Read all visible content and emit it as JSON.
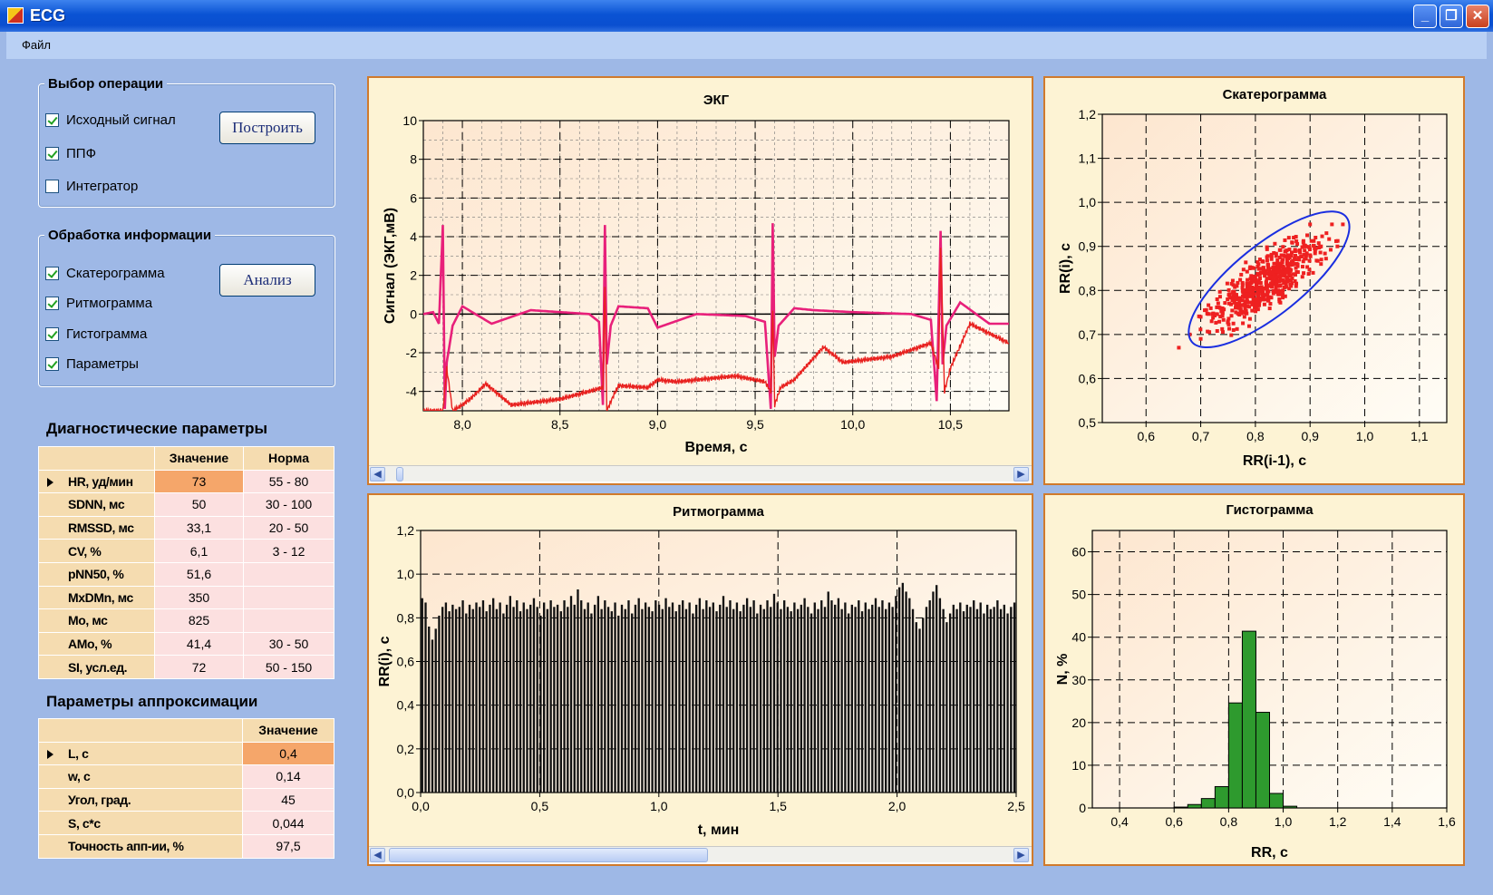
{
  "window": {
    "title": "ECG"
  },
  "menu": {
    "file": "Файл"
  },
  "ops": {
    "legend": "Выбор операции",
    "items": [
      {
        "label": "Исходный сигнал",
        "checked": true
      },
      {
        "label": "ППФ",
        "checked": true
      },
      {
        "label": "Интегратор",
        "checked": false
      }
    ],
    "build_label": "Построить"
  },
  "proc": {
    "legend": "Обработка информации",
    "items": [
      {
        "label": "Скатерограмма",
        "checked": true
      },
      {
        "label": "Ритмограмма",
        "checked": true
      },
      {
        "label": "Гистограмма",
        "checked": true
      },
      {
        "label": "Параметры",
        "checked": true
      }
    ],
    "analyze_label": "Анализ"
  },
  "diag": {
    "title": "Диагностические параметры",
    "col_value": "Значение",
    "col_norm": "Норма",
    "rows": [
      {
        "name": "HR, уд/мин",
        "value": "73",
        "norm": "55 - 80"
      },
      {
        "name": "SDNN, мс",
        "value": "50",
        "norm": "30 - 100"
      },
      {
        "name": "RMSSD, мс",
        "value": "33,1",
        "norm": "20 - 50"
      },
      {
        "name": "CV, %",
        "value": "6,1",
        "norm": "3 - 12"
      },
      {
        "name": "pNN50, %",
        "value": "51,6",
        "norm": ""
      },
      {
        "name": "MxDMn, мс",
        "value": "350",
        "norm": ""
      },
      {
        "name": "Mo, мс",
        "value": "825",
        "norm": ""
      },
      {
        "name": "AMo, %",
        "value": "41,4",
        "norm": "30 - 50"
      },
      {
        "name": "SI, усл.ед.",
        "value": "72",
        "norm": "50 - 150"
      }
    ]
  },
  "approx": {
    "title": "Параметры аппроксимации",
    "col_value": "Значение",
    "rows": [
      {
        "name": "L, с",
        "value": "0,4"
      },
      {
        "name": "w, с",
        "value": "0,14"
      },
      {
        "name": "Угол, град.",
        "value": "45"
      },
      {
        "name": "S, с*с",
        "value": "0,044"
      },
      {
        "name": "Точность апп-ии, %",
        "value": "97,5"
      }
    ]
  },
  "colors": {
    "ecg_raw": "#e8207a",
    "ecg_filtered": "#e8201e",
    "scatter": "#ee2020",
    "ellipse": "#1a2ee0",
    "hist": "#2e9a2e",
    "panel_border": "#d07a2c"
  },
  "chart_data": [
    {
      "id": "ecg",
      "type": "line",
      "title": "ЭКГ",
      "xlabel": "Время, с",
      "ylabel": "Сигнал (ЭКГ,мВ)",
      "xlim": [
        7.8,
        10.8
      ],
      "ylim": [
        -5,
        10
      ],
      "xticks": [
        "8,0",
        "8,5",
        "9,0",
        "9,5",
        "10,0",
        "10,5"
      ],
      "yticks": [
        "-4",
        "-2",
        "0",
        "2",
        "4",
        "6",
        "8",
        "10"
      ],
      "grid": true,
      "r_peaks": [
        7.9,
        8.73,
        9.59,
        10.45
      ],
      "series": [
        {
          "color": "#e8207a",
          "x": [
            7.8,
            7.85,
            7.88,
            7.9,
            7.91,
            7.92,
            7.95,
            8.0,
            8.15,
            8.35,
            8.5,
            8.65,
            8.7,
            8.72,
            8.73,
            8.74,
            8.76,
            8.8,
            8.95,
            9.0,
            9.2,
            9.45,
            9.55,
            9.58,
            9.59,
            9.6,
            9.62,
            9.7,
            9.8,
            10.0,
            10.3,
            10.4,
            10.43,
            10.45,
            10.46,
            10.48,
            10.55,
            10.7,
            10.8
          ],
          "y": [
            0,
            0.1,
            -0.5,
            4.6,
            -4.9,
            -2.5,
            -0.6,
            0.4,
            -0.5,
            0.2,
            0.1,
            0,
            -0.4,
            -4.7,
            4.6,
            -2.6,
            -0.6,
            0.4,
            0.3,
            -0.7,
            0,
            -0.1,
            -0.4,
            -4.9,
            4.7,
            -2.2,
            -0.6,
            0.3,
            0.2,
            0.1,
            0,
            -0.3,
            -4.5,
            4.3,
            -2.6,
            -0.6,
            0.6,
            -0.5,
            -0.5
          ]
        },
        {
          "color": "#e8201e",
          "x": [
            7.8,
            7.9,
            7.92,
            7.95,
            8.0,
            8.05,
            8.12,
            8.25,
            8.5,
            8.72,
            8.73,
            8.74,
            8.77,
            8.8,
            8.95,
            9.0,
            9.1,
            9.4,
            9.55,
            9.58,
            9.59,
            9.6,
            9.63,
            9.7,
            9.85,
            9.95,
            10.2,
            10.4,
            10.44,
            10.45,
            10.47,
            10.5,
            10.6,
            10.8
          ],
          "y": [
            -5,
            -5,
            -2.8,
            -5,
            -4.7,
            -4.3,
            -3.6,
            -4.7,
            -4.4,
            -3.8,
            1.5,
            -5,
            -4.3,
            -3.7,
            -3.8,
            -3.4,
            -3.5,
            -3.2,
            -3.5,
            -4,
            0.3,
            -4.7,
            -3.8,
            -3.4,
            -1.7,
            -2.5,
            -2.2,
            -1.5,
            -2.8,
            3.5,
            -4,
            -2.8,
            -0.5,
            -1.5
          ]
        }
      ]
    },
    {
      "id": "scatter",
      "type": "scatter",
      "title": "Скатерограмма",
      "xlabel": "RR(i-1), с",
      "ylabel": "RR(i), с",
      "xlim": [
        0.52,
        1.15
      ],
      "ylim": [
        0.5,
        1.2
      ],
      "xticks": [
        "0,6",
        "0,7",
        "0,8",
        "0,9",
        "1,0",
        "1,1"
      ],
      "yticks": [
        "0,5",
        "0,6",
        "0,7",
        "0,8",
        "0,9",
        "1,0",
        "1,1",
        "1,2"
      ],
      "grid": true,
      "ellipse": {
        "center": [
          0.825,
          0.825
        ],
        "L": 0.4,
        "w": 0.14,
        "angle_deg": 45
      },
      "points": [
        [
          0.66,
          0.67
        ],
        [
          0.68,
          0.7
        ],
        [
          0.7,
          0.69
        ],
        [
          0.72,
          0.73
        ],
        [
          0.74,
          0.75
        ],
        [
          0.75,
          0.73
        ],
        [
          0.76,
          0.78
        ],
        [
          0.77,
          0.76
        ],
        [
          0.78,
          0.79
        ],
        [
          0.79,
          0.81
        ],
        [
          0.8,
          0.78
        ],
        [
          0.8,
          0.82
        ],
        [
          0.81,
          0.8
        ],
        [
          0.81,
          0.84
        ],
        [
          0.82,
          0.82
        ],
        [
          0.82,
          0.79
        ],
        [
          0.83,
          0.84
        ],
        [
          0.83,
          0.81
        ],
        [
          0.84,
          0.86
        ],
        [
          0.84,
          0.83
        ],
        [
          0.85,
          0.84
        ],
        [
          0.85,
          0.87
        ],
        [
          0.86,
          0.85
        ],
        [
          0.86,
          0.88
        ],
        [
          0.87,
          0.86
        ],
        [
          0.88,
          0.89
        ],
        [
          0.88,
          0.87
        ],
        [
          0.89,
          0.9
        ],
        [
          0.9,
          0.88
        ],
        [
          0.91,
          0.92
        ],
        [
          0.92,
          0.9
        ],
        [
          0.93,
          0.93
        ],
        [
          0.94,
          0.95
        ],
        [
          0.96,
          0.95
        ],
        [
          0.73,
          0.78
        ],
        [
          0.78,
          0.74
        ],
        [
          0.79,
          0.85
        ],
        [
          0.85,
          0.79
        ],
        [
          0.87,
          0.92
        ],
        [
          0.92,
          0.86
        ],
        [
          0.7,
          0.74
        ],
        [
          0.76,
          0.71
        ],
        [
          0.9,
          0.95
        ],
        [
          0.95,
          0.9
        ]
      ]
    },
    {
      "id": "rhythm",
      "type": "bar",
      "title": "Ритмограмма",
      "xlabel": "t, мин",
      "ylabel": "RR(i), с",
      "xlim": [
        0,
        2.5
      ],
      "ylim": [
        0,
        1.2
      ],
      "xticks": [
        "0,0",
        "0,5",
        "1,0",
        "1,5",
        "2,0",
        "2,5"
      ],
      "yticks": [
        "0,0",
        "0,2",
        "0,4",
        "0,6",
        "0,8",
        "1,0",
        "1,2"
      ],
      "grid": true,
      "values": [
        0.89,
        0.87,
        0.76,
        0.7,
        0.75,
        0.81,
        0.85,
        0.87,
        0.83,
        0.86,
        0.84,
        0.85,
        0.88,
        0.82,
        0.86,
        0.84,
        0.87,
        0.85,
        0.88,
        0.83,
        0.86,
        0.89,
        0.84,
        0.87,
        0.82,
        0.86,
        0.9,
        0.85,
        0.88,
        0.83,
        0.87,
        0.84,
        0.86,
        0.89,
        0.85,
        0.81,
        0.87,
        0.84,
        0.88,
        0.85,
        0.86,
        0.83,
        0.88,
        0.85,
        0.9,
        0.86,
        0.93,
        0.88,
        0.84,
        0.87,
        0.82,
        0.86,
        0.9,
        0.84,
        0.88,
        0.85,
        0.83,
        0.87,
        0.81,
        0.86,
        0.84,
        0.88,
        0.82,
        0.86,
        0.89,
        0.84,
        0.87,
        0.85,
        0.83,
        0.88,
        0.86,
        0.84,
        0.89,
        0.85,
        0.87,
        0.83,
        0.86,
        0.88,
        0.84,
        0.87,
        0.82,
        0.86,
        0.89,
        0.84,
        0.88,
        0.85,
        0.87,
        0.83,
        0.86,
        0.9,
        0.85,
        0.88,
        0.84,
        0.87,
        0.83,
        0.86,
        0.89,
        0.85,
        0.88,
        0.82,
        0.86,
        0.84,
        0.88,
        0.85,
        0.91,
        0.87,
        0.84,
        0.88,
        0.85,
        0.83,
        0.87,
        0.84,
        0.86,
        0.89,
        0.85,
        0.82,
        0.87,
        0.84,
        0.88,
        0.85,
        0.92,
        0.88,
        0.86,
        0.89,
        0.84,
        0.87,
        0.82,
        0.86,
        0.85,
        0.88,
        0.83,
        0.87,
        0.84,
        0.86,
        0.89,
        0.85,
        0.88,
        0.84,
        0.87,
        0.85,
        0.9,
        0.94,
        0.96,
        0.92,
        0.89,
        0.84,
        0.78,
        0.75,
        0.8,
        0.85,
        0.88,
        0.92,
        0.95,
        0.89,
        0.84,
        0.78,
        0.82,
        0.86,
        0.84,
        0.87,
        0.83,
        0.86,
        0.85,
        0.88,
        0.84,
        0.87,
        0.82,
        0.86,
        0.84,
        0.85,
        0.88,
        0.84,
        0.86,
        0.82,
        0.85,
        0.87
      ]
    },
    {
      "id": "hist",
      "type": "bar",
      "title": "Гистограмма",
      "xlabel": "RR, с",
      "ylabel": "N, %",
      "xlim": [
        0.3,
        1.6
      ],
      "ylim": [
        0,
        65
      ],
      "xticks": [
        "0,4",
        "0,6",
        "0,8",
        "1,0",
        "1,2",
        "1,4",
        "1,6"
      ],
      "yticks": [
        "0",
        "10",
        "20",
        "30",
        "40",
        "50",
        "60"
      ],
      "grid": true,
      "bin_width": 0.05,
      "bins": [
        0.6,
        0.65,
        0.7,
        0.75,
        0.8,
        0.85,
        0.9,
        0.95,
        1.0
      ],
      "values": [
        0.2,
        0.8,
        2.2,
        5,
        24.6,
        41.4,
        22.4,
        3.4,
        0.4
      ]
    }
  ]
}
